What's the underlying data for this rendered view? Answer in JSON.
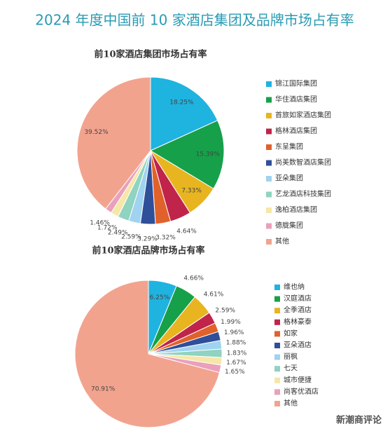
{
  "title": "2024 年度中国前 10 家酒店集团及品牌市场占有率",
  "watermark": "新潮商评论",
  "chart_data": [
    {
      "type": "pie",
      "title": "前10家酒店集团市场占有率",
      "categories": [
        "锦江国际集团",
        "华住酒店集团",
        "首旅如家酒店集团",
        "格林酒店集团",
        "东呈集团",
        "尚美数智酒店集团",
        "亚朵集团",
        "艺龙酒店科技集团",
        "逸柏酒店集团",
        "德胧集团",
        "其他"
      ],
      "values": [
        18.25,
        15.39,
        7.33,
        4.64,
        3.32,
        3.29,
        2.59,
        2.49,
        1.72,
        1.46,
        39.52
      ],
      "value_labels": [
        "18.25%",
        "15.39%",
        "7.33%",
        "4.64%",
        "3.32%",
        "3.29%",
        "2.59%",
        "2.49%",
        "1.72%",
        "1.46%",
        "39.52%"
      ],
      "colors": [
        "#1fb3e0",
        "#17a04a",
        "#e8b520",
        "#c0244a",
        "#e0622a",
        "#2f4f9a",
        "#9fd3ef",
        "#8fd3c0",
        "#f6e7a8",
        "#eaa0bb",
        "#f2a38e"
      ]
    },
    {
      "type": "pie",
      "title": "前10家酒店品牌市场占有率",
      "categories": [
        "维也纳",
        "汉庭酒店",
        "全季酒店",
        "格林豪泰",
        "如家",
        "亚朵酒店",
        "丽枫",
        "七天",
        "城市便捷",
        "尚客优酒店",
        "其他"
      ],
      "values": [
        6.25,
        4.66,
        4.61,
        2.59,
        1.99,
        1.96,
        1.88,
        1.83,
        1.67,
        1.65,
        70.91
      ],
      "value_labels": [
        "6.25%",
        "4.66%",
        "4.61%",
        "2.59%",
        "1.99%",
        "1.96%",
        "1.88%",
        "1.83%",
        "1.67%",
        "1.65%",
        "70.91%"
      ],
      "colors": [
        "#1fb3e0",
        "#17a04a",
        "#e8b520",
        "#c0244a",
        "#e0622a",
        "#2f4f9a",
        "#9fd3ef",
        "#8fd3c0",
        "#f6e7a8",
        "#eaa0bb",
        "#f2a38e"
      ]
    }
  ]
}
